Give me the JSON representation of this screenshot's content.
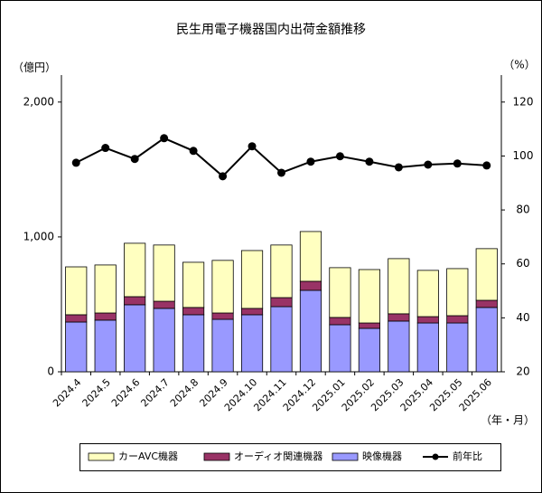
{
  "chart_data": {
    "type": "bar",
    "title": "民生用電子機器国内出荷金額推移",
    "y_label": "（億円）",
    "y2_label": "（%）",
    "x_label": "（年・月）",
    "categories": [
      "2024.4",
      "2024.5",
      "2024.6",
      "2024.7",
      "2024.8",
      "2024.9",
      "2024.10",
      "2024.11",
      "2024.12",
      "2025.01",
      "2025.02",
      "2025.03",
      "2025.04",
      "2025.05",
      "2025.06"
    ],
    "series": [
      {
        "name": "映像機器",
        "color": "#9999ff",
        "values": [
          369,
          383,
          497,
          470,
          423,
          389,
          423,
          483,
          604,
          349,
          322,
          376,
          362,
          362,
          477
        ]
      },
      {
        "name": "オーディオ関連機器",
        "color": "#993366",
        "values": [
          54,
          53,
          60,
          53,
          54,
          47,
          47,
          67,
          67,
          54,
          40,
          54,
          47,
          54,
          53
        ]
      },
      {
        "name": "カーAVC機器",
        "color": "#ffffc0",
        "values": [
          355,
          356,
          396,
          417,
          335,
          390,
          429,
          390,
          369,
          369,
          396,
          409,
          343,
          349,
          383
        ]
      },
      {
        "name": "前年比",
        "type": "line",
        "axis": "y2",
        "color": "#000000",
        "values": [
          97.5,
          103,
          98.9,
          106.6,
          101.9,
          92.5,
          103.6,
          93.8,
          97.9,
          99.9,
          97.9,
          95.8,
          96.8,
          97.2,
          96.5
        ]
      }
    ],
    "legend_order": [
      2,
      1,
      0,
      3
    ],
    "legend": "bottom",
    "ylim": [
      0,
      2200
    ],
    "yticks": [
      0,
      {
        "value": 1000,
        "label": "1,000"
      },
      {
        "value": 2000,
        "label": "2,000"
      }
    ],
    "y2lim": [
      20,
      130
    ],
    "y2ticks": [
      20,
      40,
      60,
      80,
      100,
      120
    ]
  }
}
